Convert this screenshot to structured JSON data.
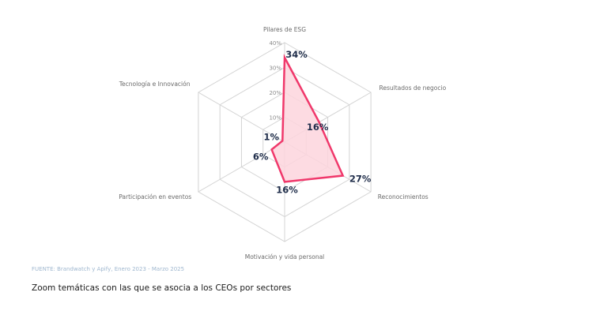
{
  "chart_data": {
    "type": "radar",
    "categories": [
      "Pilares de ESG",
      "Resultados de negocio",
      "Reconocimientos",
      "Motivación y vida personal",
      "Participación en eventos",
      "Tecnología e Innovación"
    ],
    "values": [
      34,
      16,
      27,
      16,
      6,
      1
    ],
    "value_labels": [
      "34%",
      "16%",
      "27%",
      "16%",
      "6%",
      "1%"
    ],
    "ticks": [
      "10%",
      "20%",
      "30%",
      "40%"
    ],
    "rlim": [
      0,
      40
    ],
    "grid": true,
    "colors": {
      "fill": "#fdd5dd",
      "stroke": "#f0386b",
      "grid": "#d4d4d4"
    }
  },
  "source": "FUENTE: Brandwatch y Apify, Enero 2023 - Marzo 2025",
  "caption": "Zoom temáticas con las que se asocia a los CEOs por sectores"
}
